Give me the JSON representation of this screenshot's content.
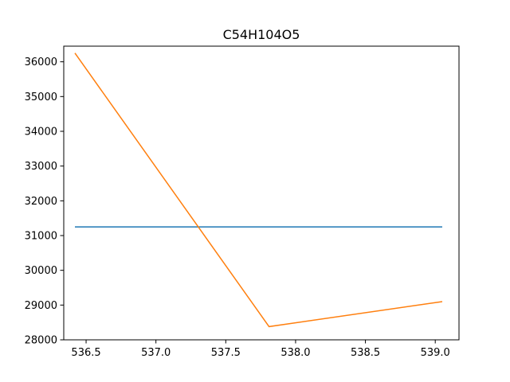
{
  "chart_data": {
    "type": "line",
    "title": "C54H104O5",
    "xlabel": "",
    "ylabel": "",
    "xlim": [
      536.34,
      539.17
    ],
    "ylim": [
      28000,
      36450
    ],
    "grid": false,
    "x_ticks": [
      536.5,
      537.0,
      537.5,
      538.0,
      538.5,
      539.0
    ],
    "x_tick_labels": [
      "536.5",
      "537.0",
      "537.5",
      "538.0",
      "538.5",
      "539.0"
    ],
    "y_ticks": [
      28000,
      29000,
      30000,
      31000,
      32000,
      33000,
      34000,
      35000,
      36000
    ],
    "y_tick_labels": [
      "28000",
      "29000",
      "30000",
      "31000",
      "32000",
      "33000",
      "34000",
      "35000",
      "36000"
    ],
    "series": [
      {
        "color": "#1f77b4",
        "x": [
          536.42,
          539.05
        ],
        "y": [
          31250,
          31250
        ]
      },
      {
        "color": "#ff7f0e",
        "x": [
          536.42,
          537.81,
          539.05
        ],
        "y": [
          36250,
          28380,
          29100
        ]
      }
    ]
  }
}
